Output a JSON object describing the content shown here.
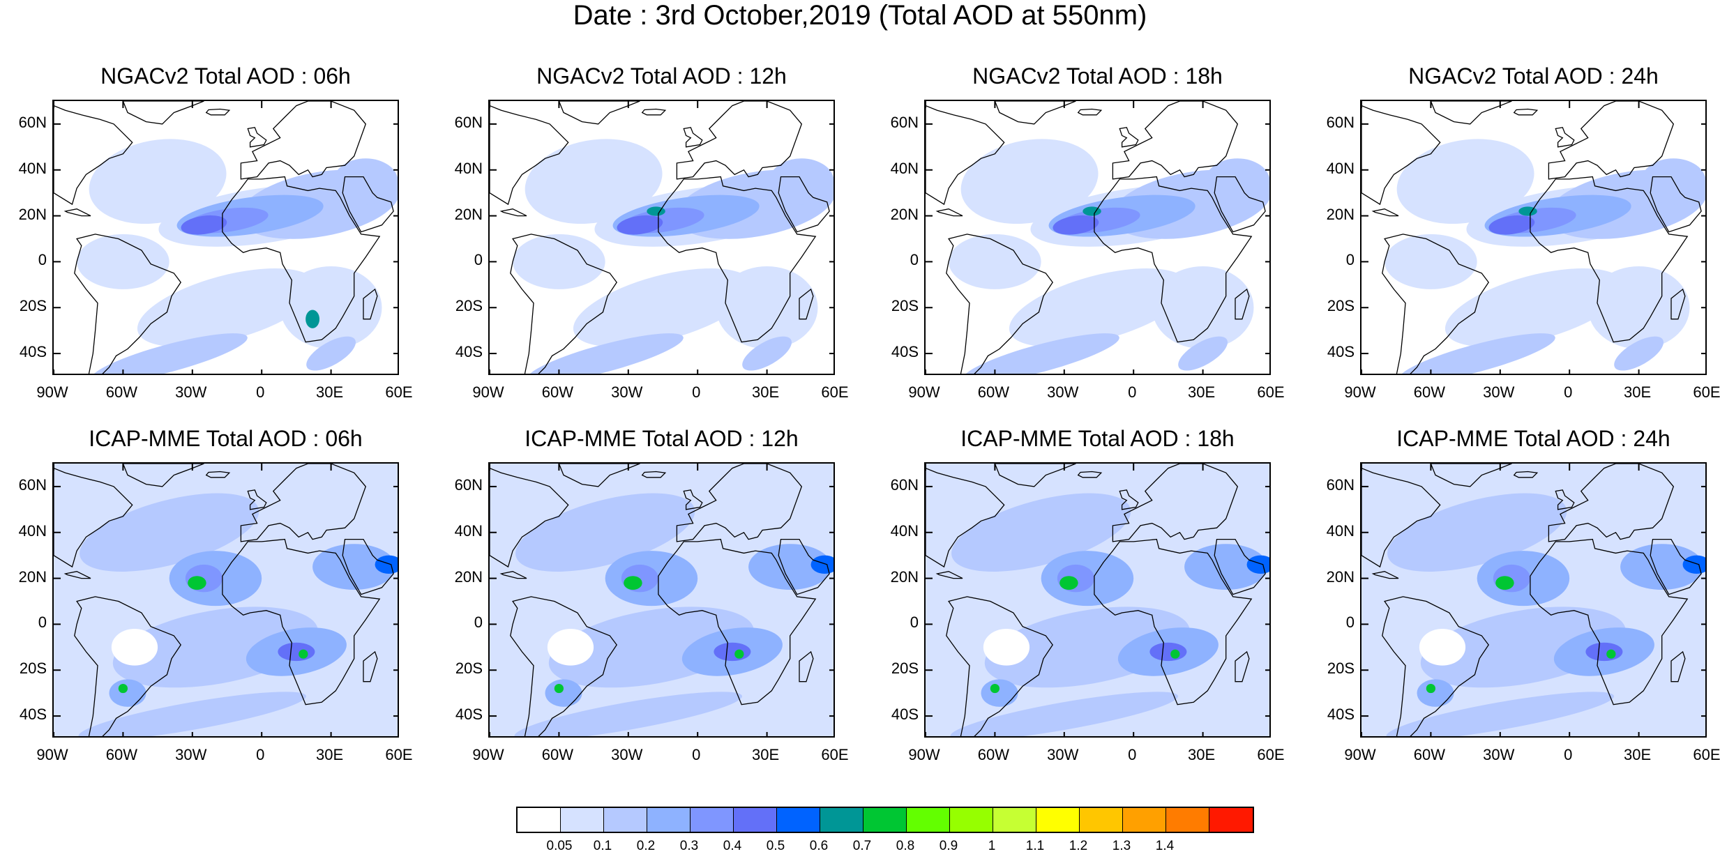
{
  "title": "Date : 3rd October,2019 (Total AOD at 550nm)",
  "lat_labels": [
    "60N",
    "40N",
    "20N",
    "0",
    "20S",
    "40S"
  ],
  "lon_labels": [
    "90W",
    "60W",
    "30W",
    "0",
    "30E",
    "60E"
  ],
  "panels": [
    {
      "title": "NGACv2 Total AOD : 06h",
      "model": "ngac",
      "hour": 6
    },
    {
      "title": "NGACv2 Total AOD : 12h",
      "model": "ngac",
      "hour": 12
    },
    {
      "title": "NGACv2 Total AOD : 18h",
      "model": "ngac",
      "hour": 18
    },
    {
      "title": "NGACv2 Total AOD : 24h",
      "model": "ngac",
      "hour": 24
    },
    {
      "title": "ICAP-MME Total AOD : 06h",
      "model": "icap",
      "hour": 6
    },
    {
      "title": "ICAP-MME Total AOD : 12h",
      "model": "icap",
      "hour": 12
    },
    {
      "title": "ICAP-MME Total AOD : 18h",
      "model": "icap",
      "hour": 18
    },
    {
      "title": "ICAP-MME Total AOD : 24h",
      "model": "icap",
      "hour": 24
    }
  ],
  "colorbar": {
    "colors": [
      "#ffffff",
      "#d6e2ff",
      "#b5c9ff",
      "#8eb2ff",
      "#7f96ff",
      "#6370f8",
      "#0063ff",
      "#009696",
      "#00c633",
      "#63ff00",
      "#96ff00",
      "#c6ff33",
      "#ffff00",
      "#ffc600",
      "#ffa000",
      "#ff7c00",
      "#ff1900"
    ],
    "labels": [
      "0.05",
      "0.1",
      "0.2",
      "0.3",
      "0.4",
      "0.5",
      "0.6",
      "0.7",
      "0.8",
      "0.9",
      "1",
      "1.1",
      "1.2",
      "1.3",
      "1.4"
    ]
  }
}
